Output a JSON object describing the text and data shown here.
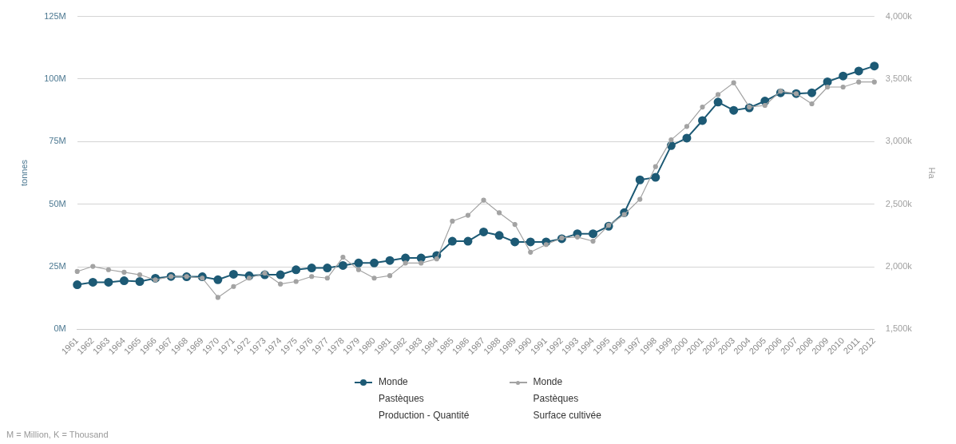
{
  "chart_data": {
    "type": "line",
    "categories": [
      "1961",
      "1962",
      "1963",
      "1964",
      "1965",
      "1966",
      "1967",
      "1968",
      "1969",
      "1970",
      "1971",
      "1972",
      "1973",
      "1974",
      "1975",
      "1976",
      "1977",
      "1978",
      "1979",
      "1980",
      "1981",
      "1982",
      "1983",
      "1984",
      "1985",
      "1986",
      "1987",
      "1988",
      "1989",
      "1990",
      "1991",
      "1992",
      "1993",
      "1994",
      "1995",
      "1996",
      "1997",
      "1998",
      "1999",
      "2000",
      "2001",
      "2002",
      "2003",
      "2004",
      "2005",
      "2006",
      "2007",
      "2008",
      "2009",
      "2010",
      "2011",
      "2012"
    ],
    "series": [
      {
        "name": "Monde\nPastèques\nProduction - Quantité",
        "color": "#1d5a75",
        "axis": "y",
        "values": [
          17.8,
          18.8,
          18.8,
          19.4,
          19.1,
          20.4,
          21.1,
          21,
          21,
          19.8,
          22,
          21.4,
          21.8,
          21.8,
          23.8,
          24.5,
          24.5,
          25.5,
          26.5,
          26.5,
          27.5,
          28.5,
          28.5,
          29.5,
          35.2,
          35.2,
          38.9,
          37.5,
          34.9,
          34.9,
          34.9,
          36.2,
          38.2,
          38.2,
          41.2,
          46.6,
          59.7,
          60.7,
          73.4,
          76.4,
          83.4,
          90.8,
          87.5,
          88.5,
          91.2,
          94.5,
          94.2,
          94.5,
          98.9,
          101.2,
          103.2,
          105.2
        ]
      },
      {
        "name": "Monde\nPastèques\nSurface cultivée",
        "color": "#a3a3a3",
        "axis": "y2",
        "values": [
          1962,
          2003,
          1976,
          1956,
          1936,
          1895,
          1922,
          1922,
          1909,
          1755,
          1842,
          1909,
          1949,
          1862,
          1882,
          1922,
          1909,
          2076,
          1976,
          1909,
          1929,
          2029,
          2029,
          2063,
          2364,
          2411,
          2532,
          2431,
          2338,
          2116,
          2177,
          2230,
          2237,
          2204,
          2331,
          2418,
          2539,
          2800,
          3014,
          3121,
          3276,
          3376,
          3470,
          3276,
          3289,
          3403,
          3383,
          3302,
          3436,
          3436,
          3476,
          3476
        ]
      }
    ],
    "ylabel": "tonnes",
    "y2label": "Ha",
    "ylim": [
      0,
      125
    ],
    "yticks": [
      {
        "value": 0,
        "label": "0M"
      },
      {
        "value": 25,
        "label": "25M"
      },
      {
        "value": 50,
        "label": "50M"
      },
      {
        "value": 75,
        "label": "75M"
      },
      {
        "value": 100,
        "label": "100M"
      },
      {
        "value": 125,
        "label": "125M"
      }
    ],
    "y2lim": [
      1500,
      4000
    ],
    "y2ticks": [
      {
        "value": 1500,
        "label": "1,500k"
      },
      {
        "value": 2000,
        "label": "2,000k"
      },
      {
        "value": 2500,
        "label": "2,500k"
      },
      {
        "value": 3000,
        "label": "3,000k"
      },
      {
        "value": 3500,
        "label": "3,500k"
      },
      {
        "value": 4000,
        "label": "4,000k"
      }
    ],
    "grid": "y",
    "legend": "bottom",
    "marker": "circle",
    "line_style": "solid",
    "annotations": [
      "M = Million, K = Thousand"
    ]
  }
}
